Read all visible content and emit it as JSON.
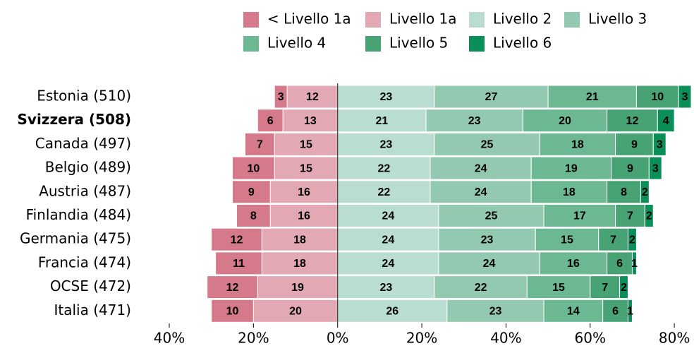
{
  "chart_data": {
    "type": "diverging_bar",
    "categories": [
      "Estonia (510)",
      "Svizzera (508)",
      "Canada (497)",
      "Belgio (489)",
      "Austria (487)",
      "Finlandia (484)",
      "Germania (475)",
      "Francia (474)",
      "OCSE (472)",
      "Italia (471)"
    ],
    "highlight": "Svizzera (508)",
    "series": [
      {
        "name": "< Livello 1a",
        "color": "#d47a8b",
        "side": "left",
        "values": [
          3,
          6,
          7,
          10,
          9,
          8,
          12,
          11,
          12,
          10
        ]
      },
      {
        "name": "Livello 1a",
        "color": "#e2a9b5",
        "side": "left",
        "values": [
          12,
          13,
          15,
          15,
          16,
          16,
          18,
          18,
          19,
          20
        ]
      },
      {
        "name": "Livello 2",
        "color": "#b9ddd0",
        "side": "right",
        "values": [
          23,
          21,
          23,
          22,
          22,
          24,
          24,
          24,
          23,
          26
        ]
      },
      {
        "name": "Livello 3",
        "color": "#94c9b1",
        "side": "right",
        "values": [
          27,
          23,
          25,
          24,
          24,
          25,
          23,
          24,
          22,
          23
        ]
      },
      {
        "name": "Livello 4",
        "color": "#6cb892",
        "side": "right",
        "values": [
          21,
          20,
          18,
          19,
          18,
          17,
          15,
          16,
          15,
          14
        ]
      },
      {
        "name": "Livello 5",
        "color": "#47a373",
        "side": "right",
        "values": [
          10,
          12,
          9,
          9,
          8,
          7,
          7,
          6,
          7,
          6
        ]
      },
      {
        "name": "Livello 6",
        "color": "#0a8f58",
        "side": "right",
        "values": [
          3,
          4,
          3,
          3,
          2,
          2,
          2,
          1,
          2,
          1
        ]
      }
    ],
    "xlim": [
      -40,
      84
    ],
    "xticks": [
      {
        "value": -40,
        "label": "40%"
      },
      {
        "value": -20,
        "label": "20%"
      },
      {
        "value": 0,
        "label": "0%"
      },
      {
        "value": 20,
        "label": "20%"
      },
      {
        "value": 40,
        "label": "40%"
      },
      {
        "value": 60,
        "label": "60%"
      },
      {
        "value": 80,
        "label": "80%"
      }
    ]
  }
}
